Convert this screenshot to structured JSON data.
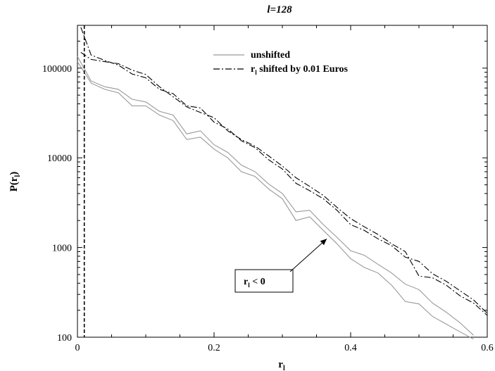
{
  "chart_data": {
    "type": "line",
    "title": "l=128",
    "xlabel": "r",
    "xlabel_sub": "l",
    "ylabel": "P(r",
    "ylabel_sub": "l",
    "ylabel_close": ")",
    "xlim": [
      0,
      0.6
    ],
    "ylim": [
      100,
      300000
    ],
    "yscale": "log",
    "x_ticks": [
      {
        "value": 0,
        "label": "0"
      },
      {
        "value": 0.2,
        "label": "0.2"
      },
      {
        "value": 0.4,
        "label": "0.4"
      },
      {
        "value": 0.6,
        "label": "0.6"
      }
    ],
    "y_ticks": [
      {
        "value": 100,
        "label": "100"
      },
      {
        "value": 1000,
        "label": "1000"
      },
      {
        "value": 10000,
        "label": "10000"
      },
      {
        "value": 100000,
        "label": "100000"
      }
    ],
    "vline": {
      "x": 0.01,
      "style": "dashed"
    },
    "legend": {
      "position": "top-right",
      "entries": [
        {
          "label": "unshifted",
          "style": "solid"
        },
        {
          "label_main": "r",
          "label_sub": "l",
          "label_rest": " shifted by 0.01 Euros",
          "style": "dash-dot"
        }
      ]
    },
    "annotation": {
      "text_main": "r",
      "text_sub": "l",
      "text_rest": " < 0",
      "arrow_to": [
        0.365,
        1250
      ]
    },
    "series": [
      {
        "style": "solid",
        "x": [
          0,
          0.02,
          0.04,
          0.06,
          0.08,
          0.1,
          0.12,
          0.14,
          0.16,
          0.18,
          0.2,
          0.22,
          0.24,
          0.26,
          0.28,
          0.3,
          0.32,
          0.34,
          0.36,
          0.38,
          0.4,
          0.42,
          0.44,
          0.46,
          0.48,
          0.5,
          0.52,
          0.54,
          0.56,
          0.58
        ],
        "values": [
          118000,
          68000,
          58000,
          53000,
          38000,
          38000,
          30000,
          26000,
          16000,
          17000,
          12500,
          10000,
          7000,
          6200,
          4500,
          3500,
          2000,
          2200,
          1550,
          1100,
          750,
          600,
          520,
          380,
          250,
          235,
          170,
          140,
          115,
          95
        ]
      },
      {
        "style": "solid",
        "x": [
          0,
          0.02,
          0.04,
          0.06,
          0.08,
          0.1,
          0.12,
          0.14,
          0.16,
          0.18,
          0.2,
          0.22,
          0.24,
          0.26,
          0.28,
          0.3,
          0.32,
          0.34,
          0.36,
          0.38,
          0.4,
          0.42,
          0.44,
          0.46,
          0.48,
          0.5,
          0.52,
          0.54,
          0.56,
          0.58
        ],
        "values": [
          135000,
          72000,
          62000,
          58000,
          45000,
          42000,
          33000,
          30000,
          18500,
          20000,
          14000,
          11500,
          8300,
          7000,
          5100,
          4000,
          2500,
          2600,
          1800,
          1300,
          920,
          820,
          650,
          520,
          390,
          340,
          240,
          190,
          145,
          105
        ]
      },
      {
        "style": "dash-dot",
        "x": [
          0.005,
          0.02,
          0.04,
          0.06,
          0.08,
          0.1,
          0.12,
          0.14,
          0.16,
          0.18,
          0.2,
          0.22,
          0.24,
          0.26,
          0.28,
          0.3,
          0.32,
          0.34,
          0.36,
          0.38,
          0.4,
          0.42,
          0.44,
          0.46,
          0.48,
          0.5,
          0.52,
          0.54,
          0.56,
          0.58,
          0.6
        ],
        "values": [
          285000,
          140000,
          122000,
          108000,
          86000,
          78000,
          58000,
          52000,
          38000,
          36000,
          25000,
          21000,
          15500,
          13000,
          9500,
          7500,
          5200,
          4300,
          3500,
          2600,
          1800,
          1550,
          1250,
          1050,
          780,
          700,
          510,
          420,
          330,
          260,
          185
        ]
      },
      {
        "style": "dash-dot",
        "x": [
          0.005,
          0.02,
          0.04,
          0.06,
          0.08,
          0.1,
          0.12,
          0.14,
          0.16,
          0.18,
          0.2,
          0.22,
          0.24,
          0.26,
          0.28,
          0.3,
          0.32,
          0.34,
          0.36,
          0.38,
          0.4,
          0.42,
          0.44,
          0.46,
          0.48,
          0.5,
          0.52,
          0.54,
          0.56,
          0.58,
          0.6
        ],
        "values": [
          150000,
          125000,
          118000,
          112000,
          95000,
          85000,
          62000,
          48000,
          37000,
          32000,
          28000,
          20000,
          16000,
          13500,
          10500,
          8100,
          6000,
          4800,
          3800,
          2800,
          2100,
          1700,
          1400,
          1100,
          900,
          480,
          460,
          380,
          290,
          240,
          175
        ]
      }
    ]
  }
}
